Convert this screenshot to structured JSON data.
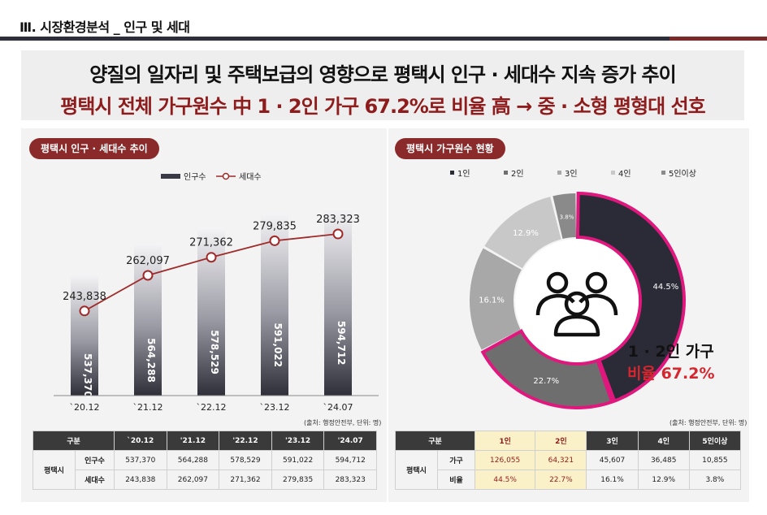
{
  "header": {
    "section_title": "Ⅲ. 시장환경분석 _ 인구 및 세대",
    "headline_line1": "양질의 일자리 및 주택보급의 영향으로 평택시 인구 · 세대수 지속 증가 추이",
    "headline_line2": "평택시 전체 가구원수 中 1 · 2인 가구 67.2%로 비율 高 → 중 · 소형 평형대 선호"
  },
  "left_panel": {
    "title": "평택시 인구 · 세대수 추이",
    "source": "(출처: 행정안전부, 단위: 명)"
  },
  "right_panel": {
    "title": "평택시 가구원수 현황",
    "source": "(출처: 행정안전부, 단위: 명)",
    "callout_line1": "1 · 2인 가구",
    "callout_line2": "비율 67.2%"
  },
  "chart_data": [
    {
      "type": "bar",
      "categories": [
        "`20.12",
        "`21.12",
        "`22.12",
        "`23.12",
        "`24.07"
      ],
      "series": [
        {
          "name": "인구수",
          "type": "bar",
          "values": [
            537370,
            564288,
            578529,
            591022,
            594712
          ],
          "labels": [
            "537,370",
            "564,288",
            "578,529",
            "591,022",
            "594,712"
          ]
        },
        {
          "name": "세대수",
          "type": "line",
          "values": [
            243838,
            262097,
            271362,
            279835,
            283323
          ],
          "labels": [
            "243,838",
            "262,097",
            "271,362",
            "279,835",
            "283,323"
          ]
        }
      ],
      "colors": {
        "bar": "#3a3a46",
        "line": "#a02a2a"
      },
      "legend_placement": "top-center"
    },
    {
      "type": "pie",
      "variant": "donut",
      "categories": [
        "1인",
        "2인",
        "3인",
        "4인",
        "5인이상"
      ],
      "values": [
        44.5,
        22.7,
        16.1,
        12.9,
        3.8
      ],
      "labels": [
        "44.5%",
        "22.7%",
        "16.1%",
        "12.9%",
        "3.8%"
      ],
      "colors": [
        "#2b2b38",
        "#6e6e6e",
        "#a8a8a8",
        "#c8c8c8",
        "#8a8a8a"
      ],
      "highlight_color": "#e0177d",
      "legend_placement": "top",
      "center_icon": "people-group-icon"
    }
  ],
  "table_left": {
    "headers": [
      "구분",
      "",
      "`20.12",
      "'21.12",
      "'22.12",
      "'23.12",
      "'24.07"
    ],
    "group": "평택시",
    "rows": [
      {
        "label": "인구수",
        "values": [
          "537,370",
          "564,288",
          "578,529",
          "591,022",
          "594,712"
        ]
      },
      {
        "label": "세대수",
        "values": [
          "243,838",
          "262,097",
          "271,362",
          "279,835",
          "283,323"
        ]
      }
    ]
  },
  "table_right": {
    "headers": [
      "구분",
      "",
      "1인",
      "2인",
      "3인",
      "4인",
      "5인이상"
    ],
    "group": "평택시",
    "rows": [
      {
        "label": "가구",
        "values": [
          "126,055",
          "64,321",
          "45,607",
          "36,485",
          "10,855"
        ]
      },
      {
        "label": "비율",
        "values": [
          "44.5%",
          "22.7%",
          "16.1%",
          "12.9%",
          "3.8%"
        ]
      }
    ]
  }
}
